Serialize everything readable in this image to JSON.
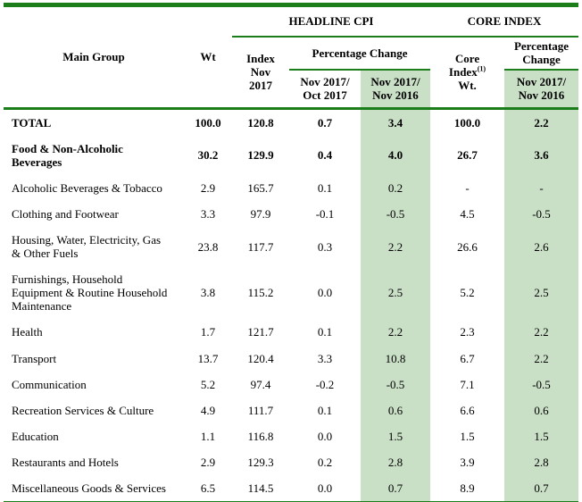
{
  "colors": {
    "rule_green": "#1b7e1b",
    "highlight_green": "#c9e0c6"
  },
  "header": {
    "main_group": "Main Group",
    "wt": "Wt",
    "headline_cpi": "HEADLINE CPI",
    "core_index": "CORE INDEX",
    "index_nov_2017": "Index\nNov\n2017",
    "pct_change_headline": "Percentage Change",
    "pct_change_core": "Percentage\nChange",
    "mom_change": "Nov 2017/\nOct 2017",
    "yoy_change": "Nov 2017/\nNov 2016",
    "core_wt_line1": "Core",
    "core_wt_line2": "Index",
    "core_wt_sup": "(1)",
    "core_wt_line3": "Wt."
  },
  "rows": [
    {
      "label": "TOTAL",
      "bold": true,
      "values": [
        "100.0",
        "120.8",
        "0.7",
        "3.4",
        "100.0",
        "2.2"
      ]
    },
    {
      "label": "Food & Non-Alcoholic\nBeverages",
      "bold": true,
      "values": [
        "30.2",
        "129.9",
        "0.4",
        "4.0",
        "26.7",
        "3.6"
      ]
    },
    {
      "label": "Alcoholic Beverages & Tobacco",
      "bold": false,
      "values": [
        "2.9",
        "165.7",
        "0.1",
        "0.2",
        "-",
        "-"
      ]
    },
    {
      "label": "Clothing and Footwear",
      "bold": false,
      "values": [
        "3.3",
        "97.9",
        "-0.1",
        "-0.5",
        "4.5",
        "-0.5"
      ]
    },
    {
      "label": "Housing, Water, Electricity, Gas\n& Other Fuels",
      "bold": false,
      "values": [
        "23.8",
        "117.7",
        "0.3",
        "2.2",
        "26.6",
        "2.6"
      ]
    },
    {
      "label": "Furnishings, Household\nEquipment & Routine Household\nMaintenance",
      "bold": false,
      "values": [
        "3.8",
        "115.2",
        "0.0",
        "2.5",
        "5.2",
        "2.5"
      ]
    },
    {
      "label": "Health",
      "bold": false,
      "values": [
        "1.7",
        "121.7",
        "0.1",
        "2.2",
        "2.3",
        "2.2"
      ]
    },
    {
      "label": "Transport",
      "bold": false,
      "values": [
        "13.7",
        "120.4",
        "3.3",
        "10.8",
        "6.7",
        "2.2"
      ]
    },
    {
      "label": "Communication",
      "bold": false,
      "values": [
        "5.2",
        "97.4",
        "-0.2",
        "-0.5",
        "7.1",
        "-0.5"
      ]
    },
    {
      "label": "Recreation Services & Culture",
      "bold": false,
      "values": [
        "4.9",
        "111.7",
        "0.1",
        "0.6",
        "6.6",
        "0.6"
      ]
    },
    {
      "label": "Education",
      "bold": false,
      "values": [
        "1.1",
        "116.8",
        "0.0",
        "1.5",
        "1.5",
        "1.5"
      ]
    },
    {
      "label": "Restaurants and Hotels",
      "bold": false,
      "values": [
        "2.9",
        "129.3",
        "0.2",
        "2.8",
        "3.9",
        "2.8"
      ]
    },
    {
      "label": "Miscellaneous Goods & Services",
      "bold": false,
      "values": [
        "6.5",
        "114.5",
        "0.0",
        "0.7",
        "8.9",
        "0.7"
      ]
    }
  ]
}
